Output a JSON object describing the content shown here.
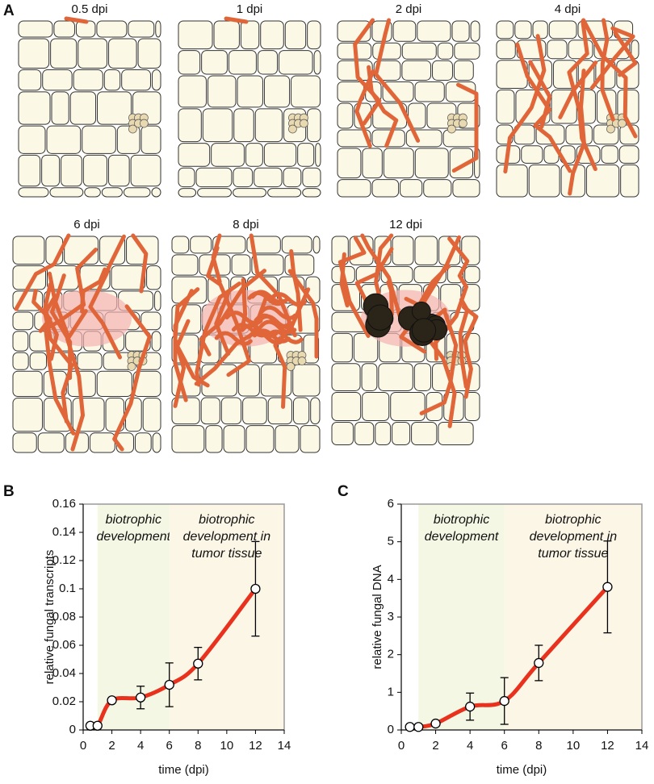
{
  "panel_labels": [
    "A",
    "B",
    "C"
  ],
  "illustration_labels": [
    "0.5 dpi",
    "1 dpi",
    "2 dpi",
    "4 dpi",
    "6 dpi",
    "8 dpi",
    "12 dpi"
  ],
  "chart_data": [
    {
      "type": "line",
      "xlabel": "time (dpi)",
      "ylabel": "relative fungal transcripts",
      "x": [
        0.5,
        1,
        2,
        4,
        6,
        8,
        12
      ],
      "values": [
        0.003,
        0.003,
        0.021,
        0.023,
        0.032,
        0.047,
        0.1
      ],
      "errors": [
        null,
        null,
        null,
        0.008,
        0.0155,
        0.0115,
        0.0335
      ],
      "color": "#e8321e",
      "xlim": [
        0,
        14
      ],
      "xticks": [
        0,
        2,
        4,
        6,
        8,
        10,
        12,
        14
      ],
      "ylim": [
        0,
        0.16
      ],
      "yticks": [
        0,
        0.02,
        0.04,
        0.06,
        0.08,
        0.1,
        0.12,
        0.14,
        0.16
      ],
      "regions": [
        {
          "start": 1,
          "end": 6,
          "color": "#f3f7e3",
          "label": [
            "biotrophic",
            "development"
          ]
        },
        {
          "start": 6,
          "end": 14,
          "color": "#fcf6e6",
          "label": [
            "biotrophic",
            "development in",
            "tumor tissue"
          ]
        }
      ]
    },
    {
      "type": "line",
      "xlabel": "time (dpi)",
      "ylabel": "relative fungal DNA",
      "x": [
        0.5,
        1,
        2,
        4,
        6,
        8,
        12
      ],
      "values": [
        0.08,
        0.08,
        0.17,
        0.62,
        0.77,
        1.78,
        3.8
      ],
      "errors": [
        null,
        null,
        null,
        0.36,
        0.62,
        0.47,
        1.22
      ],
      "color": "#e8321e",
      "xlim": [
        0,
        14
      ],
      "xticks": [
        0,
        2,
        4,
        6,
        8,
        10,
        12,
        14
      ],
      "ylim": [
        0,
        6
      ],
      "yticks": [
        0,
        1,
        2,
        3,
        4,
        5,
        6
      ],
      "regions": [
        {
          "start": 1,
          "end": 6,
          "color": "#f3f7e3",
          "label": [
            "biotrophic",
            "development"
          ]
        },
        {
          "start": 6,
          "end": 14,
          "color": "#fcf6e6",
          "label": [
            "biotrophic",
            "development in",
            "tumor tissue"
          ]
        }
      ]
    }
  ]
}
